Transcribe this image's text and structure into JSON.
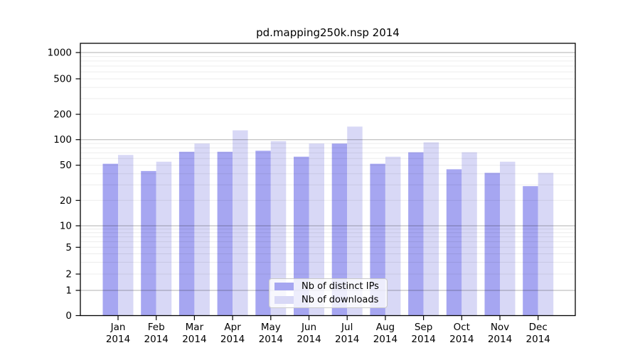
{
  "title": "pd.mapping250k.nsp 2014",
  "chart_data": {
    "type": "bar",
    "title": "pd.mapping250k.nsp 2014",
    "categories": [
      "Jan",
      "Feb",
      "Mar",
      "Apr",
      "May",
      "Jun",
      "Jul",
      "Aug",
      "Sep",
      "Oct",
      "Nov",
      "Dec"
    ],
    "x_year_label": "2014",
    "series": [
      {
        "name": "Nb of distinct IPs",
        "color": "#a6a6f1",
        "values": [
          52,
          43,
          72,
          72,
          74,
          63,
          90,
          52,
          71,
          45,
          41,
          29
        ]
      },
      {
        "name": "Nb of downloads",
        "color": "#d8d8f6",
        "values": [
          66,
          55,
          90,
          129,
          96,
          90,
          143,
          63,
          93,
          71,
          55,
          41
        ]
      }
    ],
    "y_ticks": [
      0,
      1,
      2,
      5,
      10,
      20,
      50,
      100,
      200,
      500,
      1000
    ],
    "scale": "symlog",
    "ylim": [
      0,
      1000
    ],
    "grid": true,
    "legend_position": "lower center",
    "colors": {
      "major_gridline": "#b3b3b3",
      "minor_gridline": "#ebebeb",
      "axis": "#000000"
    }
  }
}
